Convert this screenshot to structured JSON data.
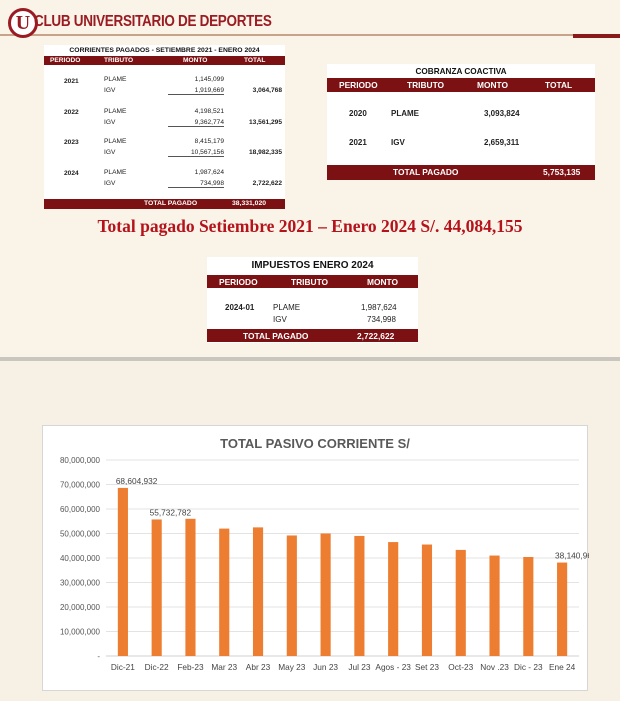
{
  "brand": {
    "logo_letter": "U",
    "name": "CLUB UNIVERSITARIO DE DEPORTES",
    "brand_color": "#9b1b22"
  },
  "corrientes": {
    "title": "CORRIENTES PAGADOS - SETIEMBRE 2021 - ENERO 2024",
    "headers": [
      "PERIODO",
      "TRIBUTO",
      "MONTO",
      "TOTAL"
    ],
    "groups": [
      {
        "year": "2021",
        "rows": [
          {
            "tributo": "PLAME",
            "monto": "1,145,099"
          },
          {
            "tributo": "IGV",
            "monto": "1,919,669"
          }
        ],
        "total": "3,064,768"
      },
      {
        "year": "2022",
        "rows": [
          {
            "tributo": "PLAME",
            "monto": "4,198,521"
          },
          {
            "tributo": "IGV",
            "monto": "9,362,774"
          }
        ],
        "total": "13,561,295"
      },
      {
        "year": "2023",
        "rows": [
          {
            "tributo": "PLAME",
            "monto": "8,415,179"
          },
          {
            "tributo": "IGV",
            "monto": "10,567,156"
          }
        ],
        "total": "18,982,335"
      },
      {
        "year": "2024",
        "rows": [
          {
            "tributo": "PLAME",
            "monto": "1,987,624"
          },
          {
            "tributo": "IGV",
            "monto": "734,998"
          }
        ],
        "total": "2,722,622"
      }
    ],
    "footer_label": "TOTAL PAGADO",
    "footer_value": "38,331,020"
  },
  "cobranza": {
    "title": "COBRANZA COACTIVA",
    "headers": [
      "PERIODO",
      "TRIBUTO",
      "MONTO",
      "TOTAL"
    ],
    "rows": [
      {
        "periodo": "2020",
        "tributo": "PLAME",
        "monto": "3,093,824"
      },
      {
        "periodo": "2021",
        "tributo": "IGV",
        "monto": "2,659,311"
      }
    ],
    "footer_label": "TOTAL PAGADO",
    "footer_value": "5,753,135"
  },
  "headline": "Total pagado Setiembre 2021 – Enero 2024 S/. 44,084,155",
  "impuestos": {
    "title": "IMPUESTOS ENERO 2024",
    "headers": [
      "PERIODO",
      "TRIBUTO",
      "MONTO"
    ],
    "periodo": "2024-01",
    "rows": [
      {
        "tributo": "PLAME",
        "monto": "1,987,624"
      },
      {
        "tributo": "IGV",
        "monto": "734,998"
      }
    ],
    "footer_label": "TOTAL PAGADO",
    "footer_value": "2,722,622"
  },
  "colors": {
    "table_header": "#7b1113",
    "headline": "#b5121b",
    "bar": "#ed7d31"
  },
  "chart_data": {
    "type": "bar",
    "title": "TOTAL PASIVO CORRIENTE S/",
    "categories": [
      "Dic-21",
      "Dic-22",
      "Feb-23",
      "Mar 23",
      "Abr 23",
      "May 23",
      "Jun 23",
      "Jul 23",
      "Agos - 23",
      "Set 23",
      "Oct-23",
      "Nov .23",
      "Dic - 23",
      "Ene 24"
    ],
    "values": [
      68604932,
      55732782,
      56000000,
      52000000,
      52500000,
      49200000,
      50000000,
      49000000,
      46500000,
      45500000,
      43300000,
      41000000,
      40400000,
      38140961
    ],
    "data_labels": {
      "0": "68,604,932",
      "1": "55,732,782",
      "13": "38,140,961"
    },
    "ylim": [
      0,
      80000000
    ],
    "yticks": [
      "-",
      "10,000,000",
      "20,000,000",
      "30,000,000",
      "40,000,000",
      "50,000,000",
      "60,000,000",
      "70,000,000",
      "80,000,000"
    ],
    "grid": true,
    "legend": "none"
  }
}
